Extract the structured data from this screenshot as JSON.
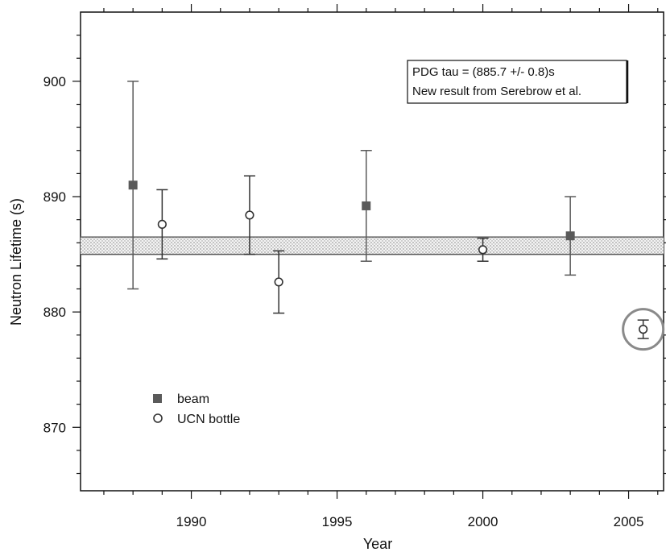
{
  "chart_data": {
    "type": "scatter",
    "xlabel": "Year",
    "ylabel": "Neutron Lifetime (s)",
    "xlim": [
      1986.2,
      2006.2
    ],
    "ylim": [
      864.5,
      906
    ],
    "x_ticks": [
      1990,
      1995,
      2000,
      2005
    ],
    "y_ticks": [
      870,
      880,
      890,
      900
    ],
    "grid": false,
    "legend_position": "lower-left",
    "band": {
      "low": 885.0,
      "high": 886.5,
      "pattern": "stipple"
    },
    "annotation": {
      "lines": [
        "PDG tau = (885.7 +/- 0.8)s",
        "New result from Serebrow et al."
      ]
    },
    "highlight": {
      "x": 2005.5,
      "y": 878.5,
      "shape": "circle"
    },
    "series": [
      {
        "name": "beam",
        "marker": "filled-square",
        "color": "#5a5a5a",
        "points": [
          {
            "x": 1988,
            "y": 891.0,
            "err_low": 9.0,
            "err_high": 9.0
          },
          {
            "x": 1996,
            "y": 889.2,
            "err_low": 4.8,
            "err_high": 4.8
          },
          {
            "x": 2003,
            "y": 886.6,
            "err_low": 3.4,
            "err_high": 3.4
          }
        ]
      },
      {
        "name": "UCN bottle",
        "marker": "open-circle",
        "color": "#333333",
        "points": [
          {
            "x": 1989,
            "y": 887.6,
            "err_low": 3.0,
            "err_high": 3.0
          },
          {
            "x": 1992,
            "y": 888.4,
            "err_low": 3.4,
            "err_high": 3.4
          },
          {
            "x": 1993,
            "y": 882.6,
            "err_low": 2.7,
            "err_high": 2.7
          },
          {
            "x": 2000,
            "y": 885.4,
            "err_low": 1.0,
            "err_high": 1.0
          },
          {
            "x": 2005.5,
            "y": 878.5,
            "err_low": 0.8,
            "err_high": 0.8
          }
        ]
      }
    ]
  }
}
